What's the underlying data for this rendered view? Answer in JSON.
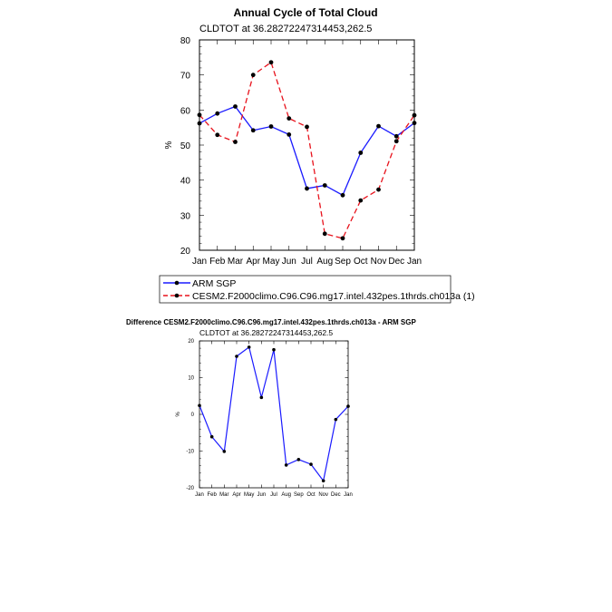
{
  "chart_data": [
    {
      "type": "line",
      "title": "Annual Cycle of Total Cloud",
      "subtitle": "CLDTOT at 36.28272247314453,262.5",
      "ylabel": "%",
      "xlabel": "",
      "categories": [
        "Jan",
        "Feb",
        "Mar",
        "Apr",
        "May",
        "Jun",
        "Jul",
        "Aug",
        "Sep",
        "Oct",
        "Nov",
        "Dec",
        "Jan"
      ],
      "ylim": [
        20,
        80
      ],
      "yticks": [
        "20",
        "30",
        "40",
        "50",
        "60",
        "70",
        "80"
      ],
      "series": [
        {
          "name": "ARM SGP",
          "color": "#1a1aff",
          "dash": false,
          "values": [
            56.2,
            59.0,
            61.0,
            54.2,
            55.3,
            53.0,
            37.6,
            38.5,
            35.7,
            47.8,
            55.4,
            52.5,
            56.3
          ]
        },
        {
          "name": "CESM2.F2000climo.C96.C96.mg17.intel.432pes.1thrds.ch013a (1)",
          "color": "#e8121c",
          "dash": true,
          "values": [
            58.6,
            52.9,
            50.9,
            70.0,
            73.6,
            57.6,
            55.2,
            24.7,
            23.4,
            34.2,
            37.3,
            51.1,
            58.5
          ]
        }
      ],
      "legend_position": "bottom",
      "grid": false
    },
    {
      "type": "line",
      "title": "Difference CESM2.F2000climo.C96.C96.mg17.intel.432pes.1thrds.ch013a - ARM SGP",
      "subtitle": "CLDTOT at 36.28272247314453,262.5",
      "ylabel": "%",
      "xlabel": "",
      "categories": [
        "Jan",
        "Feb",
        "Mar",
        "Apr",
        "May",
        "Jun",
        "Jul",
        "Aug",
        "Sep",
        "Oct",
        "Nov",
        "Dec",
        "Jan"
      ],
      "ylim": [
        -20,
        20
      ],
      "yticks": [
        "-20",
        "-10",
        "0",
        "10",
        "20"
      ],
      "series": [
        {
          "color": "#1a1aff",
          "values": [
            2.4,
            -6.1,
            -10.1,
            15.8,
            18.3,
            4.6,
            17.6,
            -13.8,
            -12.3,
            -13.6,
            -18.1,
            -1.4,
            2.2
          ]
        }
      ],
      "grid": false
    }
  ]
}
